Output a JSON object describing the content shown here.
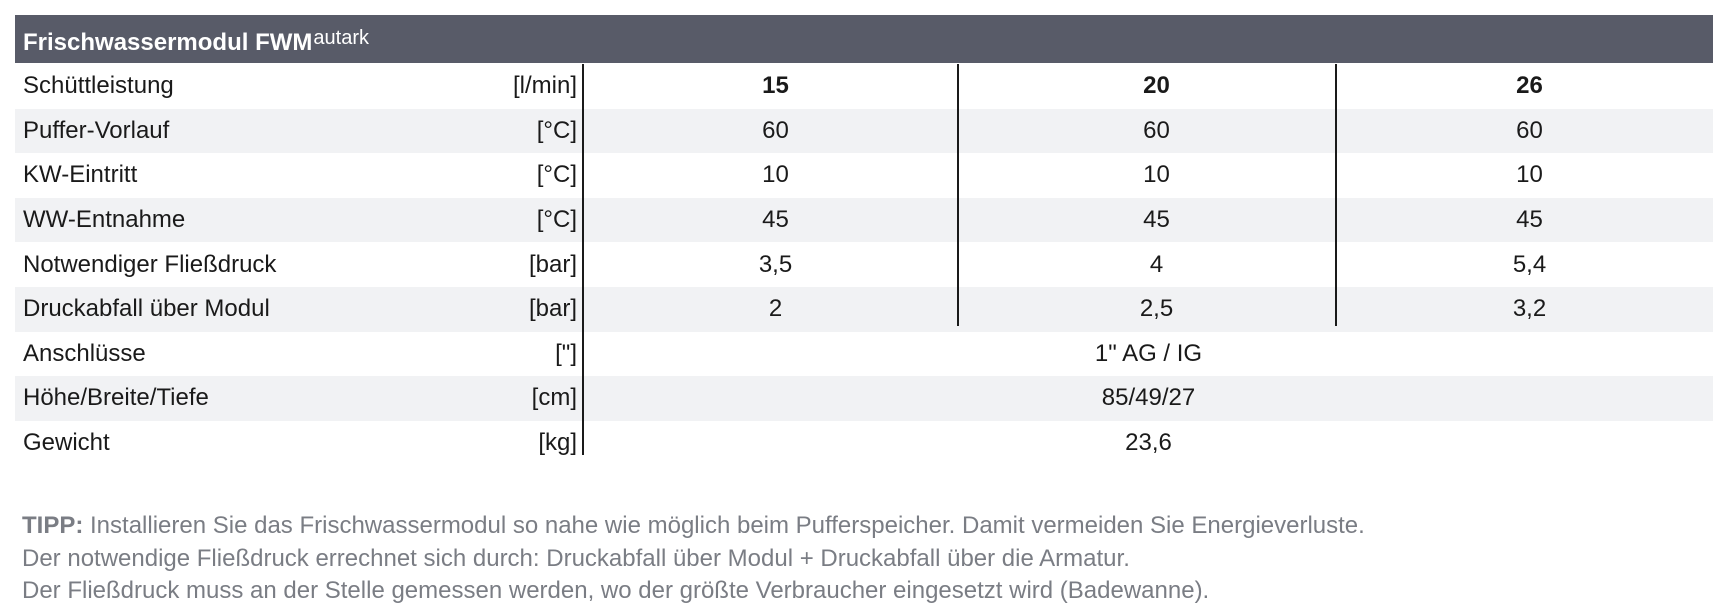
{
  "table": {
    "title": "Frischwassermodul FWM",
    "title_sup": "autark",
    "rows": [
      {
        "label": "Schüttleistung",
        "unit": "[l/min]",
        "values": [
          "15",
          "20",
          "26"
        ]
      },
      {
        "label": "Puffer-Vorlauf",
        "unit": "[°C]",
        "values": [
          "60",
          "60",
          "60"
        ]
      },
      {
        "label": "KW-Eintritt",
        "unit": "[°C]",
        "values": [
          "10",
          "10",
          "10"
        ]
      },
      {
        "label": "WW-Entnahme",
        "unit": "[°C]",
        "values": [
          "45",
          "45",
          "45"
        ]
      },
      {
        "label": "Notwendiger Fließdruck",
        "unit": "[bar]",
        "values": [
          "3,5",
          "4",
          "5,4"
        ]
      },
      {
        "label": "Druckabfall über Modul",
        "unit": "[bar]",
        "values": [
          "2",
          "2,5",
          "3,2"
        ]
      },
      {
        "label": "Anschlüsse",
        "unit": "[\"]",
        "value": "1\" AG / IG"
      },
      {
        "label": "Höhe/Breite/Tiefe",
        "unit": "[cm]",
        "value": "85/49/27"
      },
      {
        "label": "Gewicht",
        "unit": "[kg]",
        "value": "23,6"
      }
    ]
  },
  "tip": {
    "label": "TIPP:",
    "line1": " Installieren Sie das Frischwassermodul so nahe wie möglich beim Pufferspeicher. Damit vermeiden Sie Energieverluste.",
    "line2": "Der notwendige Fließdruck errechnet sich durch: Druckabfall über Modul + Druckabfall über die Armatur.",
    "line3": "Der Fließdruck muss an der Stelle gemessen werden, wo der größte Verbraucher eingesetzt wird (Badewanne)."
  },
  "colors": {
    "header_bg": "#585b68",
    "row_shade": "#f1f2f4",
    "tip_text": "#7a7d84"
  }
}
